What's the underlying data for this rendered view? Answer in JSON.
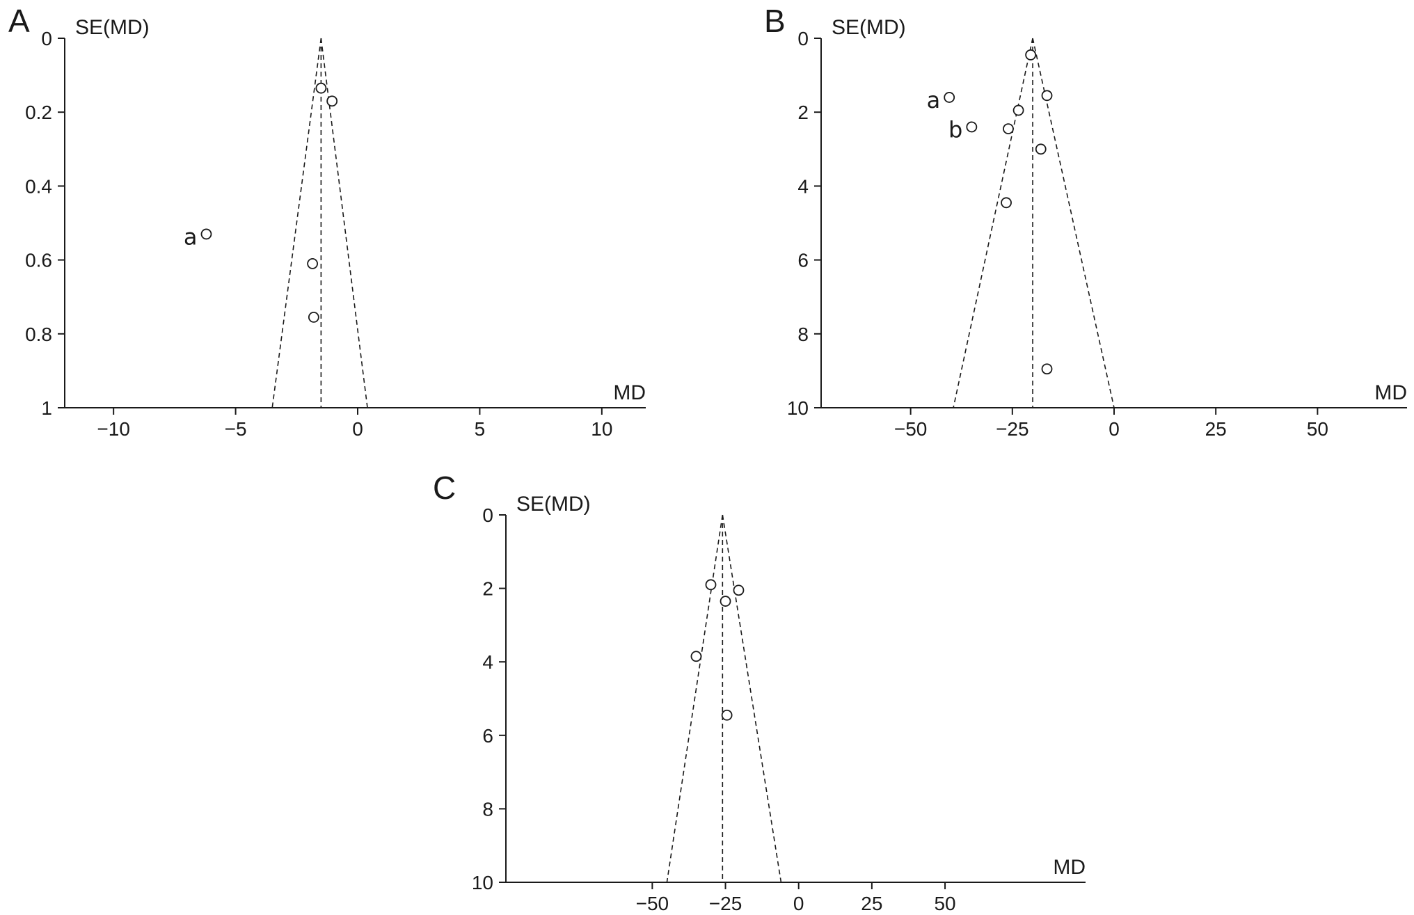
{
  "chart_data": [
    {
      "panel": "A",
      "type": "scatter",
      "xlabel": "MD",
      "ylabel": "SE(MD)",
      "xlim": [
        -12,
        11.8
      ],
      "ylim": [
        0,
        1
      ],
      "y_inverted": true,
      "xticks": [
        -10,
        -5,
        0,
        5,
        10
      ],
      "xtick_labels": [
        "−10",
        "−5",
        "0",
        "5",
        "10"
      ],
      "yticks": [
        0,
        0.2,
        0.4,
        0.6,
        0.8,
        1
      ],
      "ytick_labels": [
        "0",
        "0.2",
        "0.4",
        "0.6",
        "0.8",
        "1"
      ],
      "pooled_md": -1.5,
      "funnel_bottom_se": 1,
      "funnel_bottom_x": [
        -3.5,
        0.4
      ],
      "points": [
        {
          "x": -1.5,
          "y": 0.135,
          "label": ""
        },
        {
          "x": -1.05,
          "y": 0.17,
          "label": ""
        },
        {
          "x": -6.2,
          "y": 0.53,
          "label": "a"
        },
        {
          "x": -1.85,
          "y": 0.61,
          "label": ""
        },
        {
          "x": -1.8,
          "y": 0.755,
          "label": ""
        }
      ]
    },
    {
      "panel": "B",
      "type": "scatter",
      "xlabel": "MD",
      "ylabel": "SE(MD)",
      "xlim": [
        -72,
        72
      ],
      "ylim": [
        0,
        10
      ],
      "y_inverted": true,
      "xticks": [
        -50,
        -25,
        0,
        25,
        50
      ],
      "xtick_labels": [
        "−50",
        "−25",
        "0",
        "25",
        "50"
      ],
      "yticks": [
        0,
        2,
        4,
        6,
        8,
        10
      ],
      "ytick_labels": [
        "0",
        "2",
        "4",
        "6",
        "8",
        "10"
      ],
      "pooled_md": -20,
      "funnel_bottom_se": 10,
      "funnel_bottom_x": [
        -39.5,
        0
      ],
      "points": [
        {
          "x": -20.5,
          "y": 0.45,
          "label": ""
        },
        {
          "x": -16.5,
          "y": 1.55,
          "label": ""
        },
        {
          "x": -40.5,
          "y": 1.6,
          "label": "a"
        },
        {
          "x": -23.5,
          "y": 1.95,
          "label": ""
        },
        {
          "x": -35,
          "y": 2.4,
          "label": "b"
        },
        {
          "x": -26,
          "y": 2.45,
          "label": ""
        },
        {
          "x": -18,
          "y": 3.0,
          "label": ""
        },
        {
          "x": -26.5,
          "y": 4.45,
          "label": ""
        },
        {
          "x": -16.5,
          "y": 8.95,
          "label": ""
        }
      ]
    },
    {
      "panel": "C",
      "type": "scatter",
      "xlabel": "MD",
      "ylabel": "SE(MD)",
      "xlim": [
        -100,
        98
      ],
      "ylim": [
        0,
        10
      ],
      "y_inverted": true,
      "xticks": [
        -50,
        -25,
        0,
        25,
        50
      ],
      "xtick_labels": [
        "−50",
        "−25",
        "0",
        "25",
        "50"
      ],
      "yticks": [
        0,
        2,
        4,
        6,
        8,
        10
      ],
      "ytick_labels": [
        "0",
        "2",
        "4",
        "6",
        "8",
        "10"
      ],
      "pooled_md": -26,
      "funnel_bottom_se": 10,
      "funnel_bottom_x": [
        -45,
        -6
      ],
      "points": [
        {
          "x": -30,
          "y": 1.9,
          "label": ""
        },
        {
          "x": -20.5,
          "y": 2.05,
          "label": ""
        },
        {
          "x": -25,
          "y": 2.35,
          "label": ""
        },
        {
          "x": -35,
          "y": 3.85,
          "label": ""
        },
        {
          "x": -24.5,
          "y": 5.45,
          "label": ""
        }
      ]
    }
  ]
}
